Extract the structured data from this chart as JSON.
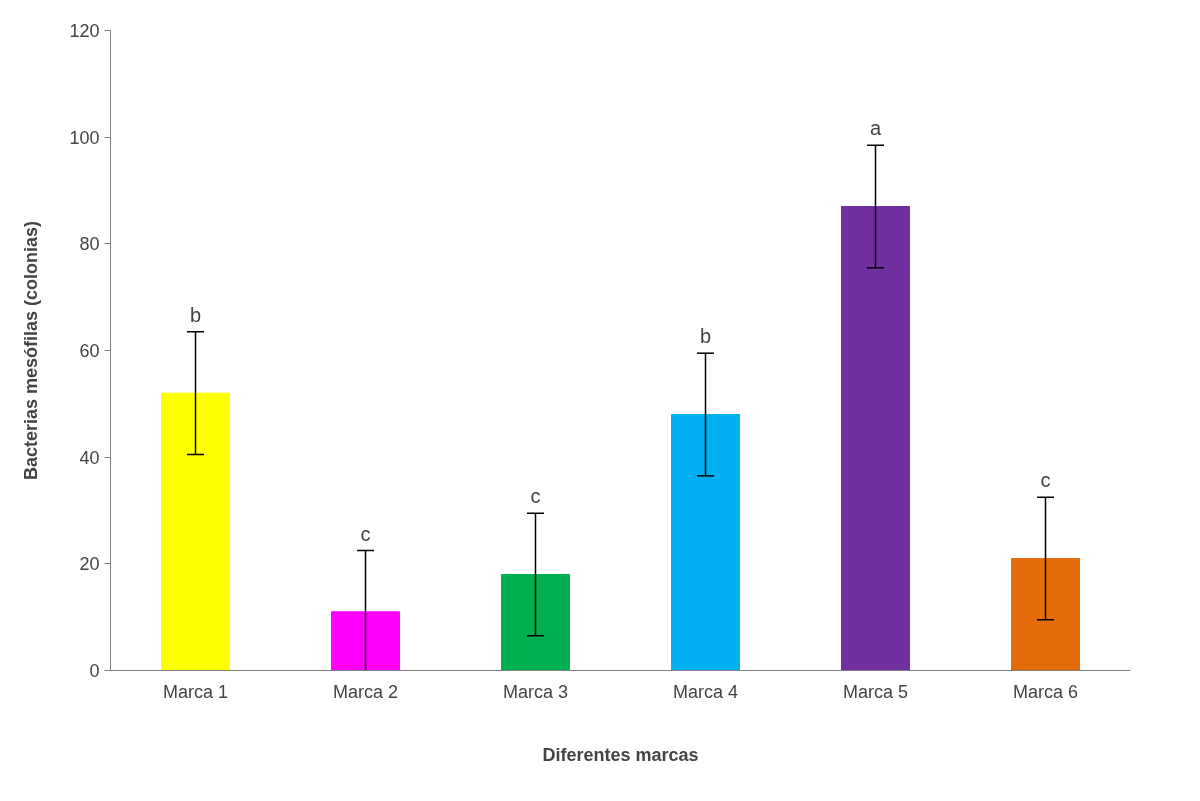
{
  "chart_data": {
    "type": "bar",
    "xlabel": "Diferentes marcas",
    "ylabel": "Bacterias mesófilas (colonias)",
    "categories": [
      "Marca 1",
      "Marca 2",
      "Marca 3",
      "Marca 4",
      "Marca 5",
      "Marca 6"
    ],
    "values": [
      52,
      11,
      18,
      48,
      87,
      21
    ],
    "colors": [
      "#ffff00",
      "#ff00ff",
      "#00b050",
      "#00b0f0",
      "#7030a0",
      "#e46c0a"
    ],
    "errors": [
      11.5,
      11.5,
      11.5,
      11.5,
      11.5,
      11.5
    ],
    "ylim": [
      0,
      120
    ],
    "yticks": [
      0,
      20,
      40,
      60,
      80,
      100,
      120
    ],
    "grid": false,
    "annotations": [
      {
        "text": "b",
        "x": "Marca 1",
        "y": 63.5
      },
      {
        "text": "c",
        "x": "Marca 2",
        "y": 22.5
      },
      {
        "text": "c",
        "x": "Marca 3",
        "y": 29.5
      },
      {
        "text": "b",
        "x": "Marca 4",
        "y": 59.5
      },
      {
        "text": "a",
        "x": "Marca 5",
        "y": 98.5
      },
      {
        "text": "c",
        "x": "Marca 6",
        "y": 32.5
      }
    ]
  }
}
